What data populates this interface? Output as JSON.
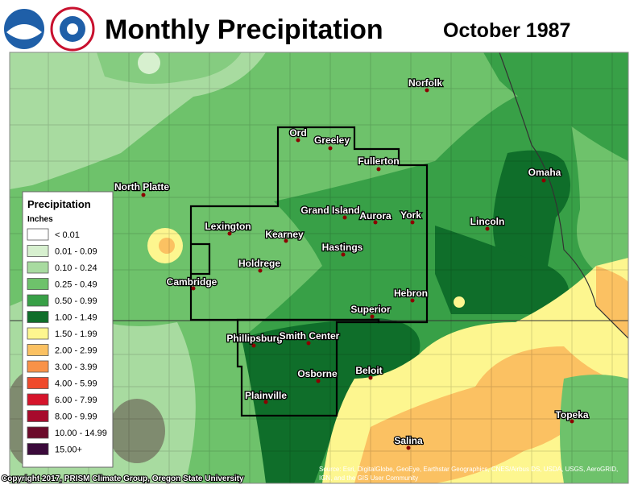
{
  "header": {
    "title": "Monthly Precipitation",
    "period": "October 1987"
  },
  "legend": {
    "title": "Precipitation",
    "units": "Inches",
    "items": [
      {
        "label": "< 0.01",
        "color": "#ffffff"
      },
      {
        "label": "0.01 - 0.09",
        "color": "#d7f0cf"
      },
      {
        "label": "0.10 - 0.24",
        "color": "#a8dba0"
      },
      {
        "label": "0.25 - 0.49",
        "color": "#6ec26b"
      },
      {
        "label": "0.50 - 0.99",
        "color": "#38a047"
      },
      {
        "label": "1.00 - 1.49",
        "color": "#0f6e2a"
      },
      {
        "label": "1.50 - 1.99",
        "color": "#fdf68f"
      },
      {
        "label": "2.00 - 2.99",
        "color": "#fbc162"
      },
      {
        "label": "3.00 - 3.99",
        "color": "#f99248"
      },
      {
        "label": "4.00 - 5.99",
        "color": "#ef4a2c"
      },
      {
        "label": "6.00 - 7.99",
        "color": "#d6142b"
      },
      {
        "label": "8.00 - 9.99",
        "color": "#a70a2c"
      },
      {
        "label": "10.00 - 14.99",
        "color": "#6b0a2a"
      },
      {
        "label": "15.00+",
        "color": "#3b0a3b"
      }
    ]
  },
  "cities": [
    "Norfolk",
    "Ord",
    "Greeley",
    "Fullerton",
    "Omaha",
    "North Platte",
    "Grand Island",
    "Aurora",
    "York",
    "Lexington",
    "Lincoln",
    "Kearney",
    "Hastings",
    "Holdrege",
    "Cambridge",
    "Hebron",
    "Superior",
    "Phillipsburg",
    "Smith Center",
    "Beloit",
    "Osborne",
    "Plainville",
    "Topeka",
    "Salina"
  ],
  "copyright": "Copyright 2017, PRISM Climate Group, Oregon State University",
  "source": [
    "Source: Esri, DigitalGlobe, GeoEye, Earthstar Geographics, CNES/Airbus DS, USDA, USGS, AeroGRID,",
    "IGN, and the GIS User Community"
  ]
}
